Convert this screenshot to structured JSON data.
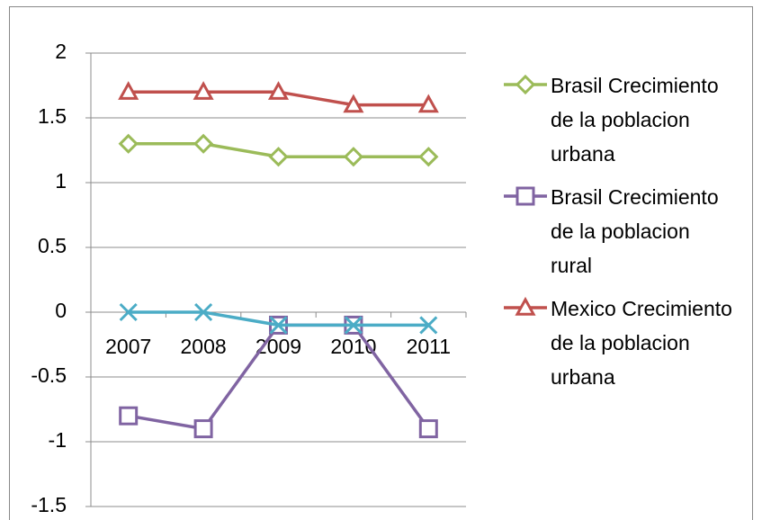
{
  "chart_data": {
    "type": "line",
    "categories": [
      "2007",
      "2008",
      "2009",
      "2010",
      "2011"
    ],
    "series": [
      {
        "name": "Brasil Crecimiento de la poblacion urbana",
        "color": "#9bbb59",
        "marker": "diamond",
        "values": [
          1.3,
          1.3,
          1.2,
          1.2,
          1.2
        ]
      },
      {
        "name": "Brasil Crecimiento de la poblacion rural",
        "color": "#8064a2",
        "marker": "square",
        "values": [
          -0.8,
          -0.9,
          -0.1,
          -0.1,
          -0.9
        ]
      },
      {
        "name": "Mexico Crecimiento de la poblacion urbana",
        "color": "#c0504d",
        "marker": "triangle",
        "values": [
          1.7,
          1.7,
          1.7,
          1.6,
          1.6
        ]
      },
      {
        "color": "#4bacc6",
        "marker": "x",
        "values": [
          0,
          0,
          -0.1,
          -0.1,
          -0.1
        ]
      }
    ],
    "ylim": [
      -1.5,
      2
    ],
    "yticks": [
      -1.5,
      -1,
      -0.5,
      0,
      0.5,
      1,
      1.5,
      2
    ],
    "grid": true,
    "legend": "right"
  }
}
